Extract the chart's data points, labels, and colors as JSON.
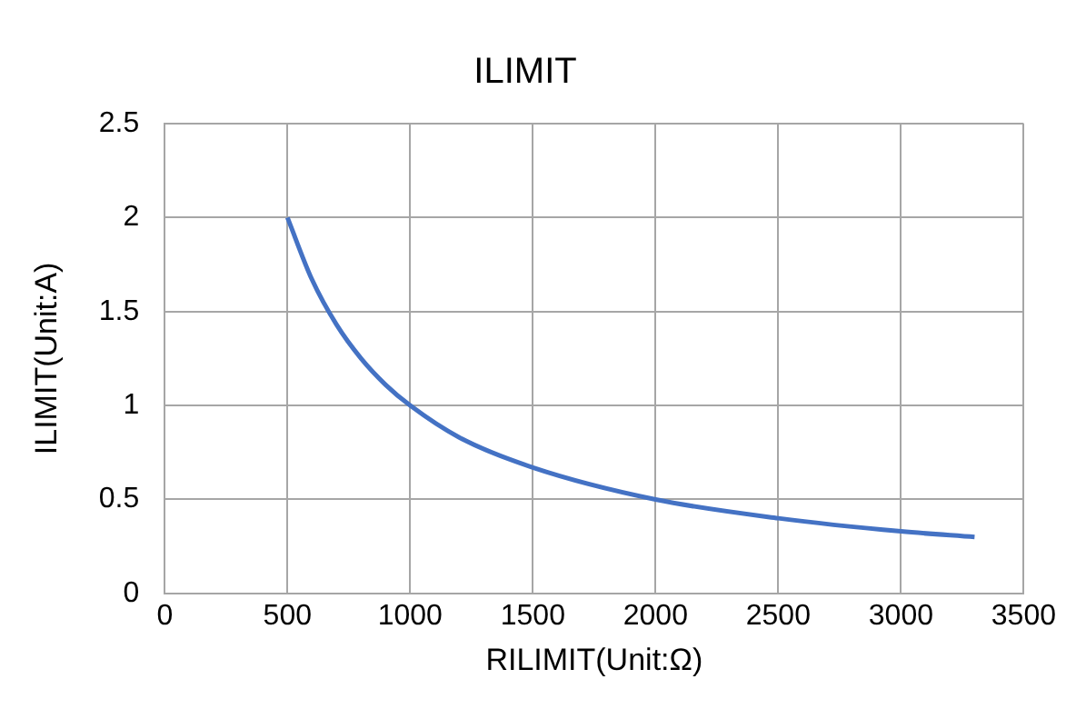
{
  "chart_data": {
    "type": "line",
    "title": "ILIMIT",
    "xlabel": "RILIMIT(Unit:Ω)",
    "ylabel": "ILIMIT(Unit:A)",
    "x": [
      500,
      600,
      700,
      800,
      900,
      1000,
      1200,
      1500,
      2000,
      2500,
      3000,
      3300
    ],
    "series": [
      {
        "color": "#4472c4",
        "values": [
          2,
          1.67,
          1.43,
          1.25,
          1.11,
          1,
          0.83,
          0.67,
          0.5,
          0.4,
          0.33,
          0.3
        ]
      }
    ],
    "xlim": [
      0,
      3500
    ],
    "xticks": [
      0,
      500,
      1000,
      1500,
      2000,
      2500,
      3000,
      3500
    ],
    "ylim": [
      0,
      2.5
    ],
    "yticks": [
      0,
      0.5,
      1,
      1.5,
      2,
      2.5
    ],
    "grid": true,
    "legend": false,
    "marker": "none",
    "line_style": "solid"
  }
}
